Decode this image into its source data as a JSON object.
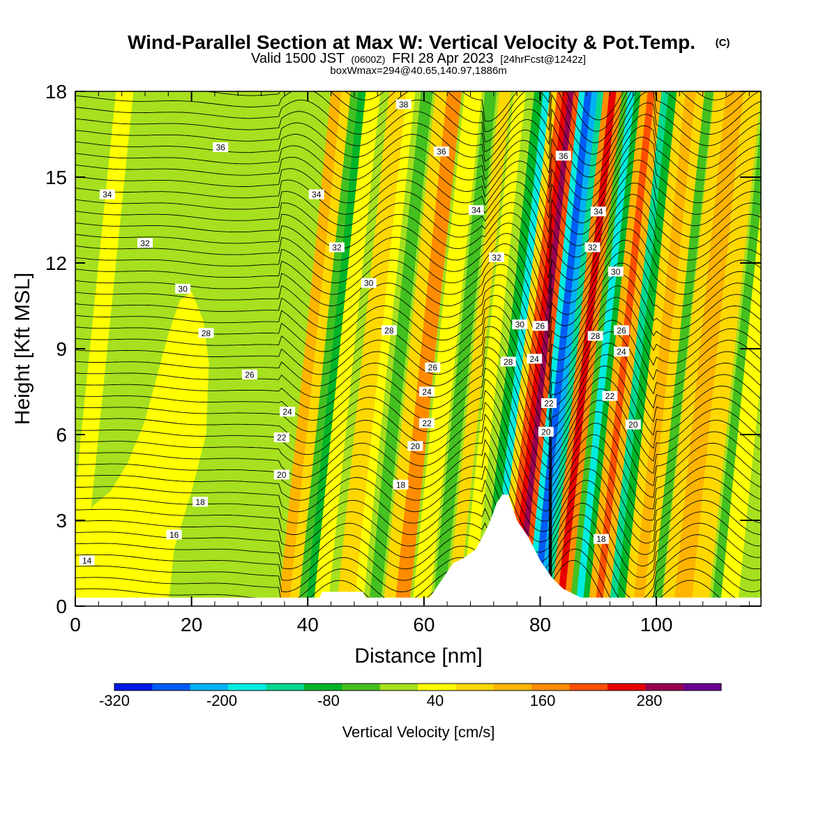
{
  "title": {
    "main": "Wind-Parallel Section at Max W: Vertical Velocity & Pot.Temp.",
    "copyright": "(C)",
    "valid_prefix": "Valid 1500 JST",
    "valid_utc": "(0600Z)",
    "valid_date": "FRI 28 Apr 2023",
    "forecast": "[24hrFcst@1242z]",
    "boxwmax": "boxWmax=294@40.65,140.97,1886m"
  },
  "chart_data": {
    "type": "heatmap",
    "xlabel": "Distance [nm]",
    "ylabel": "Height [Kft MSL]",
    "xlim": [
      0,
      118
    ],
    "ylim": [
      0,
      18
    ],
    "xticks": [
      0,
      20,
      40,
      60,
      80,
      100
    ],
    "yticks": [
      0,
      3,
      6,
      9,
      12,
      15,
      18
    ],
    "colorbar": {
      "label": "Vertical Velocity [cm/s]",
      "ticks": [
        "-320",
        "-200",
        "-80",
        "40",
        "160",
        "280"
      ],
      "colors": [
        "#0018e6",
        "#005ef5",
        "#00b2f5",
        "#00ece0",
        "#00d890",
        "#00b428",
        "#44c020",
        "#a6e01e",
        "#ffff00",
        "#ffd800",
        "#ffb400",
        "#ff8c00",
        "#ff5000",
        "#e80000",
        "#9a0050",
        "#6a0090"
      ]
    },
    "vertical_velocity_bands": [
      {
        "x": 0,
        "w": 3,
        "c": 8
      },
      {
        "x": 37,
        "w": 1.8,
        "c": 10
      },
      {
        "x": 38.8,
        "w": 1.6,
        "c": 9
      },
      {
        "x": 40.4,
        "w": 1.3,
        "c": 6
      },
      {
        "x": 41.7,
        "w": 1.3,
        "c": 5
      },
      {
        "x": 43,
        "w": 2.5,
        "c": 8
      },
      {
        "x": 47,
        "w": 3,
        "c": 9
      },
      {
        "x": 50,
        "w": 1.5,
        "c": 8
      },
      {
        "x": 52.5,
        "w": 2,
        "c": 6
      },
      {
        "x": 55,
        "w": 2,
        "c": 9
      },
      {
        "x": 57,
        "w": 2.5,
        "c": 11
      },
      {
        "x": 60,
        "w": 3,
        "c": 8
      },
      {
        "x": 63.5,
        "w": 2,
        "c": 6
      },
      {
        "x": 66,
        "w": 2,
        "c": 9
      },
      {
        "x": 68.5,
        "w": 2,
        "c": 8
      },
      {
        "x": 72,
        "w": 1.5,
        "c": 5
      },
      {
        "x": 73.5,
        "w": 1.2,
        "c": 3
      },
      {
        "x": 74.7,
        "w": 1.2,
        "c": 9
      },
      {
        "x": 75.9,
        "w": 1,
        "c": 12
      },
      {
        "x": 76.9,
        "w": 0.9,
        "c": 13
      },
      {
        "x": 77.8,
        "w": 1,
        "c": 14
      },
      {
        "x": 78.8,
        "w": 0.9,
        "c": 12
      },
      {
        "x": 79.7,
        "w": 1,
        "c": 3
      },
      {
        "x": 80.7,
        "w": 1.2,
        "c": 1
      },
      {
        "x": 81.9,
        "w": 1,
        "c": 2
      },
      {
        "x": 82.9,
        "w": 1,
        "c": 4
      },
      {
        "x": 83.9,
        "w": 1,
        "c": 11
      },
      {
        "x": 84.9,
        "w": 1.2,
        "c": 13
      },
      {
        "x": 86.1,
        "w": 1,
        "c": 11
      },
      {
        "x": 87.1,
        "w": 1,
        "c": 6
      },
      {
        "x": 88.1,
        "w": 1.2,
        "c": 3
      },
      {
        "x": 89.3,
        "w": 1,
        "c": 5
      },
      {
        "x": 90.3,
        "w": 1.2,
        "c": 10
      },
      {
        "x": 91.5,
        "w": 1.2,
        "c": 12
      },
      {
        "x": 92.7,
        "w": 1.2,
        "c": 10
      },
      {
        "x": 93.9,
        "w": 1.2,
        "c": 4
      },
      {
        "x": 95.1,
        "w": 1.4,
        "c": 5
      },
      {
        "x": 96.5,
        "w": 1.5,
        "c": 9
      },
      {
        "x": 98,
        "w": 1.8,
        "c": 10
      },
      {
        "x": 99.8,
        "w": 1.5,
        "c": 9
      },
      {
        "x": 101.3,
        "w": 1.5,
        "c": 6
      },
      {
        "x": 103,
        "w": 2,
        "c": 9
      },
      {
        "x": 105,
        "w": 3,
        "c": 10
      },
      {
        "x": 108,
        "w": 3,
        "c": 9
      },
      {
        "x": 111.5,
        "w": 1.5,
        "c": 6
      },
      {
        "x": 113,
        "w": 3,
        "c": 8
      }
    ],
    "terrain": [
      [
        0,
        0.3
      ],
      [
        42,
        0.3
      ],
      [
        42.5,
        0.5
      ],
      [
        49.5,
        0.5
      ],
      [
        50,
        0.3
      ],
      [
        61,
        0.3
      ],
      [
        62,
        0.6
      ],
      [
        63,
        0.9
      ],
      [
        64,
        1.2
      ],
      [
        65,
        1.5
      ],
      [
        67,
        1.7
      ],
      [
        69,
        2.0
      ],
      [
        70,
        2.4
      ],
      [
        71,
        2.8
      ],
      [
        72,
        3.3
      ],
      [
        72.5,
        3.6
      ],
      [
        73.5,
        3.9
      ],
      [
        74.5,
        3.9
      ],
      [
        75,
        3.6
      ],
      [
        76,
        3.0
      ],
      [
        77,
        2.7
      ],
      [
        78,
        2.4
      ],
      [
        79,
        2.0
      ],
      [
        80,
        1.6
      ],
      [
        81,
        1.3
      ],
      [
        82,
        1.0
      ],
      [
        83,
        0.8
      ],
      [
        84,
        0.6
      ],
      [
        86,
        0.4
      ],
      [
        87,
        0.3
      ],
      [
        118,
        0.3
      ]
    ],
    "theta_labels": [
      {
        "text": "14",
        "x": 2,
        "y": 1.6
      },
      {
        "text": "16",
        "x": 17,
        "y": 2.5
      },
      {
        "text": "18",
        "x": 21.5,
        "y": 3.65
      },
      {
        "text": "20",
        "x": 35.5,
        "y": 4.6
      },
      {
        "text": "22",
        "x": 35.5,
        "y": 5.9
      },
      {
        "text": "24",
        "x": 36.5,
        "y": 6.8
      },
      {
        "text": "26",
        "x": 30,
        "y": 8.1
      },
      {
        "text": "28",
        "x": 22.5,
        "y": 9.55
      },
      {
        "text": "30",
        "x": 18.5,
        "y": 11.1
      },
      {
        "text": "32",
        "x": 12,
        "y": 12.7
      },
      {
        "text": "34",
        "x": 5.5,
        "y": 14.4
      },
      {
        "text": "36",
        "x": 25,
        "y": 16.05
      },
      {
        "text": "38",
        "x": 56.5,
        "y": 17.55
      },
      {
        "text": "36",
        "x": 63,
        "y": 15.9
      },
      {
        "text": "34",
        "x": 41.5,
        "y": 14.4
      },
      {
        "text": "34",
        "x": 69,
        "y": 13.85
      },
      {
        "text": "32",
        "x": 45,
        "y": 12.55
      },
      {
        "text": "32",
        "x": 72.5,
        "y": 12.2
      },
      {
        "text": "30",
        "x": 50.5,
        "y": 11.3
      },
      {
        "text": "28",
        "x": 54,
        "y": 9.65
      },
      {
        "text": "26",
        "x": 61.5,
        "y": 8.35
      },
      {
        "text": "24",
        "x": 60.5,
        "y": 7.5
      },
      {
        "text": "22",
        "x": 60.5,
        "y": 6.4
      },
      {
        "text": "20",
        "x": 58.5,
        "y": 5.6
      },
      {
        "text": "18",
        "x": 56,
        "y": 4.25
      },
      {
        "text": "30",
        "x": 76.5,
        "y": 9.85
      },
      {
        "text": "28",
        "x": 74.5,
        "y": 8.55
      },
      {
        "text": "26",
        "x": 80,
        "y": 9.8
      },
      {
        "text": "24",
        "x": 79,
        "y": 8.65
      },
      {
        "text": "22",
        "x": 81.5,
        "y": 7.1
      },
      {
        "text": "20",
        "x": 81,
        "y": 6.1
      },
      {
        "text": "36",
        "x": 84,
        "y": 15.75
      },
      {
        "text": "34",
        "x": 90,
        "y": 13.8
      },
      {
        "text": "32",
        "x": 89,
        "y": 12.55
      },
      {
        "text": "30",
        "x": 93,
        "y": 11.7
      },
      {
        "text": "28",
        "x": 89.5,
        "y": 9.45
      },
      {
        "text": "26",
        "x": 94,
        "y": 9.65
      },
      {
        "text": "24",
        "x": 94,
        "y": 8.9
      },
      {
        "text": "22",
        "x": 92,
        "y": 7.35
      },
      {
        "text": "20",
        "x": 96,
        "y": 6.35
      },
      {
        "text": "18",
        "x": 90.5,
        "y": 2.35
      }
    ]
  }
}
